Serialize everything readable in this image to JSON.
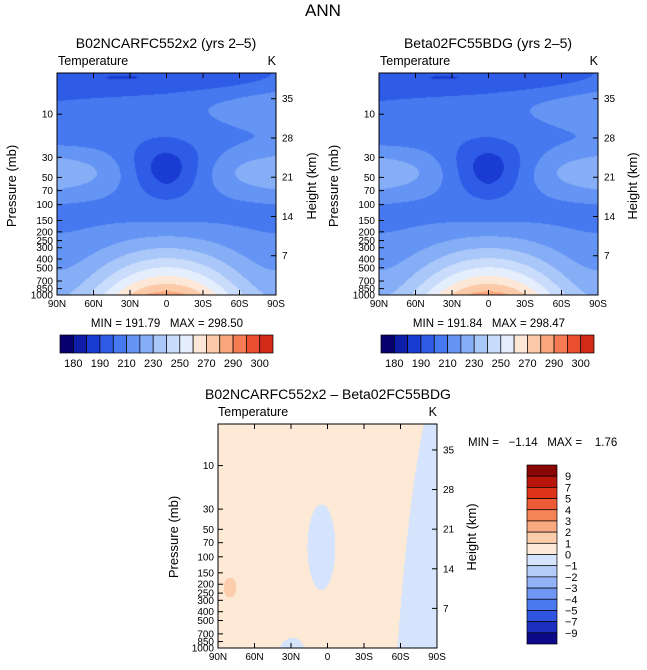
{
  "figure_title": "ANN",
  "colors": {
    "abs_levels": [
      "#08006e",
      "#0f1ea8",
      "#1b3cd2",
      "#2e5ce6",
      "#4678ef",
      "#6494f4",
      "#86aef7",
      "#a9c7f9",
      "#c9dcfb",
      "#e5eefd",
      "#fde8d8",
      "#fccaa8",
      "#f9a67c",
      "#f47b52",
      "#ea4f2f",
      "#d12a17",
      "#a6120b",
      "#7a0306"
    ],
    "diff_levels": [
      "#0d0a8a",
      "#1d2fc0",
      "#2f55e0",
      "#4a78ee",
      "#6f97f3",
      "#93b3f7",
      "#b5ccfa",
      "#d5e4fc",
      "#fde9d6",
      "#fbcdab",
      "#f9aa80",
      "#f48356",
      "#ec5b33",
      "#dd3318",
      "#b8160b",
      "#8a0505"
    ]
  },
  "panels": [
    {
      "id": "left",
      "title": "B02NCARFC552x2 (yrs 2–5)",
      "variable": "Temperature",
      "units": "K",
      "y_label": "Pressure (mb)",
      "y2_label": "Height (km)",
      "stats": "MIN = 191.79   MAX = 298.50"
    },
    {
      "id": "right",
      "title": "Beta02FC55BDG (yrs 2–5)",
      "variable": "Temperature",
      "units": "K",
      "y_label": "Pressure (mb)",
      "y2_label": "Height (km)",
      "stats": "MIN = 191.84   MAX = 298.47"
    },
    {
      "id": "diff",
      "title": "B02NCARFC552x2 – Beta02FC55BDG",
      "variable": "Temperature",
      "units": "K",
      "y_label": "Pressure (mb)",
      "y2_label": "Height (km)",
      "stats": "MIN =   −1.14   MAX =    1.76"
    }
  ],
  "x_ticks": [
    "90N",
    "60N",
    "30N",
    "0",
    "30S",
    "60S",
    "90S"
  ],
  "p_ticks": [
    {
      "label": "10",
      "p": 10
    },
    {
      "label": "30",
      "p": 30
    },
    {
      "label": "50",
      "p": 50
    },
    {
      "label": "70",
      "p": 70
    },
    {
      "label": "100",
      "p": 100
    },
    {
      "label": "150",
      "p": 150
    },
    {
      "label": "200",
      "p": 200
    },
    {
      "label": "250",
      "p": 250
    },
    {
      "label": "300",
      "p": 300
    },
    {
      "label": "400",
      "p": 400
    },
    {
      "label": "500",
      "p": 500
    },
    {
      "label": "700",
      "p": 700
    },
    {
      "label": "850",
      "p": 850
    },
    {
      "label": "1000",
      "p": 1000
    }
  ],
  "h_ticks": [
    "35",
    "28",
    "21",
    "14",
    "7"
  ],
  "colorbar_abs_labels": [
    "180",
    "190",
    "210",
    "230",
    "250",
    "270",
    "290",
    "300"
  ],
  "colorbar_diff_labels": [
    "9",
    "7",
    "5",
    "4",
    "3",
    "2",
    "1",
    "0",
    "−1",
    "−2",
    "−3",
    "−4",
    "−5",
    "−7",
    "−9"
  ],
  "chart_data": [
    {
      "type": "heatmap",
      "title": "B02NCARFC552x2 (yrs 2–5)",
      "subtitle": "Temperature",
      "xlabel": "",
      "ylabel": "Pressure (mb)",
      "y2label": "Height (km)",
      "x": [
        90,
        60,
        30,
        0,
        -30,
        -60,
        -90
      ],
      "ylim_mb": [
        1000,
        3.5
      ],
      "scale_y": "log",
      "min": 191.79,
      "max": 298.5,
      "levels": [
        180,
        190,
        200,
        210,
        220,
        230,
        240,
        250,
        260,
        270,
        280,
        290,
        300
      ]
    },
    {
      "type": "heatmap",
      "title": "Beta02FC55BDG (yrs 2–5)",
      "subtitle": "Temperature",
      "xlabel": "",
      "ylabel": "Pressure (mb)",
      "y2label": "Height (km)",
      "x": [
        90,
        60,
        30,
        0,
        -30,
        -60,
        -90
      ],
      "ylim_mb": [
        1000,
        3.5
      ],
      "scale_y": "log",
      "min": 191.84,
      "max": 298.47,
      "levels": [
        180,
        190,
        200,
        210,
        220,
        230,
        240,
        250,
        260,
        270,
        280,
        290,
        300
      ]
    },
    {
      "type": "heatmap",
      "title": "B02NCARFC552x2 – Beta02FC55BDG",
      "subtitle": "Temperature",
      "xlabel": "",
      "ylabel": "Pressure (mb)",
      "y2label": "Height (km)",
      "x": [
        90,
        60,
        30,
        0,
        -30,
        -60,
        -90
      ],
      "ylim_mb": [
        1000,
        3.5
      ],
      "scale_y": "log",
      "min": -1.14,
      "max": 1.76,
      "levels": [
        -9,
        -7,
        -5,
        -4,
        -3,
        -2,
        -1,
        0,
        1,
        2,
        3,
        4,
        5,
        7,
        9
      ]
    }
  ]
}
